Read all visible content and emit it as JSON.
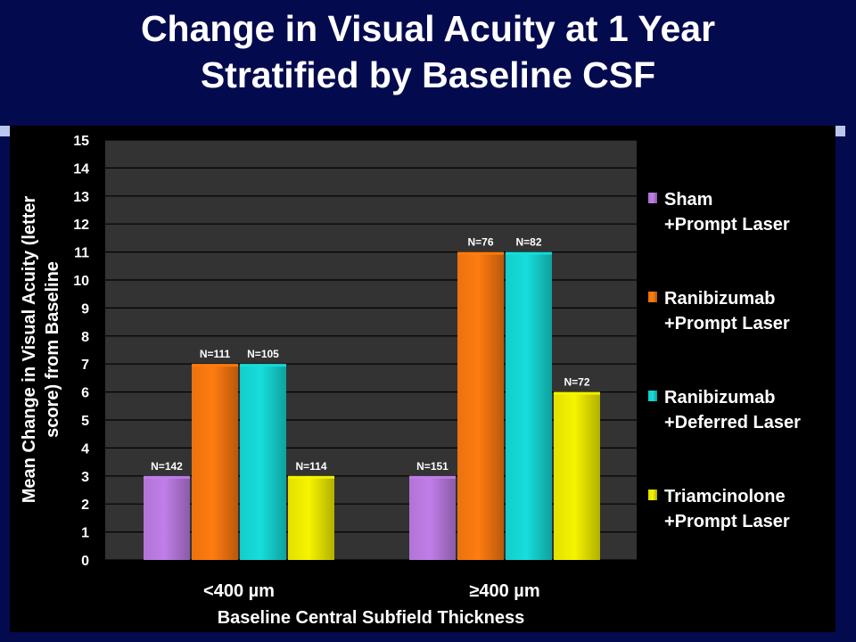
{
  "slide": {
    "title_line1": "Change in Visual Acuity at 1 Year",
    "title_line2": "Stratified by Baseline CSF"
  },
  "colors": {
    "background": "#040a4e",
    "plot_area": "#333333",
    "text": "#ffffff",
    "accent_squares": "#b9c7ee"
  },
  "chart_data": {
    "type": "bar",
    "categories": [
      "<400 µm",
      "≥400 µm"
    ],
    "series": [
      {
        "name": "Sham +Prompt Laser",
        "legend_line1": "Sham",
        "legend_line2": "+Prompt Laser",
        "color": "#c07ee8",
        "values": [
          3,
          3
        ],
        "labels": [
          "N=142",
          "N=151"
        ]
      },
      {
        "name": "Ranibizumab +Prompt Laser",
        "legend_line1": "Ranibizumab",
        "legend_line2": "+Prompt Laser",
        "color": "#ff7c10",
        "values": [
          7,
          11
        ],
        "labels": [
          "N=111",
          "N=76"
        ]
      },
      {
        "name": "Ranibizumab +Deferred Laser",
        "legend_line1": "Ranibizumab",
        "legend_line2": "+Deferred Laser",
        "color": "#16dedc",
        "values": [
          7,
          11
        ],
        "labels": [
          "N=105",
          "N=82"
        ]
      },
      {
        "name": "Triamcinolone +Prompt Laser",
        "legend_line1": "Triamcinolone",
        "legend_line2": "+Prompt Laser",
        "color": "#f6f400",
        "values": [
          3,
          6
        ],
        "labels": [
          "N=114",
          "N=72"
        ]
      }
    ],
    "title": "Change in Visual Acuity at 1 Year Stratified by Baseline CSF",
    "xlabel": "Baseline Central Subfield Thickness",
    "ylabel_line1": "Mean Change in Visual Acuity (letter",
    "ylabel_line2": "score) from Baseline",
    "ylim": [
      0,
      15
    ],
    "yticks": [
      "0",
      "1",
      "2",
      "3",
      "4",
      "5",
      "6",
      "7",
      "8",
      "9",
      "10",
      "11",
      "12",
      "13",
      "14",
      "15"
    ],
    "grid": true,
    "legend_position": "right"
  }
}
